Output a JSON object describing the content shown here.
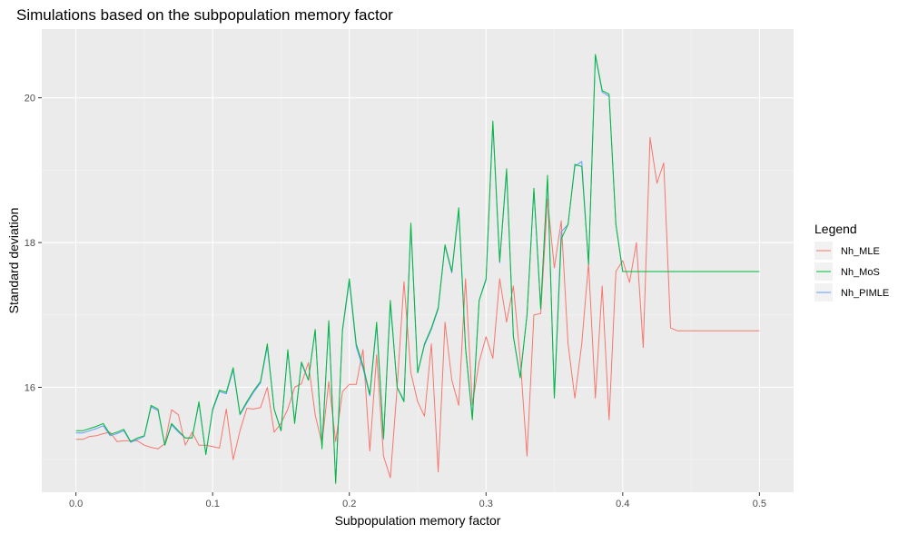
{
  "chart_data": {
    "type": "line",
    "title": "Simulations based on the subpopulation memory factor",
    "xlabel": "Subpopulation memory factor",
    "ylabel": "Standard deviation",
    "xlim": [
      -0.025,
      0.525
    ],
    "ylim": [
      14.55,
      20.95
    ],
    "x_ticks": [
      0.0,
      0.1,
      0.2,
      0.3,
      0.4,
      0.5
    ],
    "x_tick_labels": [
      "0.0",
      "0.1",
      "0.2",
      "0.3",
      "0.4",
      "0.5"
    ],
    "y_ticks": [
      16,
      18,
      20
    ],
    "y_tick_labels": [
      "16",
      "18",
      "20"
    ],
    "grid": true,
    "legend": {
      "title": "Legend",
      "position": "right"
    },
    "x": [
      0.0,
      0.005,
      0.01,
      0.015,
      0.02,
      0.025,
      0.03,
      0.035,
      0.04,
      0.045,
      0.05,
      0.055,
      0.06,
      0.065,
      0.07,
      0.075,
      0.08,
      0.085,
      0.09,
      0.095,
      0.1,
      0.105,
      0.11,
      0.115,
      0.12,
      0.125,
      0.13,
      0.135,
      0.14,
      0.145,
      0.15,
      0.155,
      0.16,
      0.165,
      0.17,
      0.175,
      0.18,
      0.185,
      0.19,
      0.195,
      0.2,
      0.205,
      0.21,
      0.215,
      0.22,
      0.225,
      0.23,
      0.235,
      0.24,
      0.245,
      0.25,
      0.255,
      0.26,
      0.265,
      0.27,
      0.275,
      0.28,
      0.285,
      0.29,
      0.295,
      0.3,
      0.305,
      0.31,
      0.315,
      0.32,
      0.325,
      0.33,
      0.335,
      0.34,
      0.345,
      0.35,
      0.355,
      0.36,
      0.365,
      0.37,
      0.375,
      0.38,
      0.385,
      0.39,
      0.395,
      0.4,
      0.405,
      0.41,
      0.415,
      0.42,
      0.425,
      0.43,
      0.435,
      0.44,
      0.445,
      0.45,
      0.455,
      0.46,
      0.465,
      0.47,
      0.475,
      0.48,
      0.485,
      0.49,
      0.495,
      0.5
    ],
    "series": [
      {
        "name": "Nh_MLE",
        "color": "#F8766D",
        "values": [
          15.28,
          15.28,
          15.32,
          15.33,
          15.36,
          15.38,
          15.25,
          15.26,
          15.26,
          15.26,
          15.2,
          15.17,
          15.15,
          15.22,
          15.69,
          15.62,
          15.2,
          15.38,
          15.2,
          15.2,
          15.18,
          15.16,
          15.7,
          15.0,
          15.4,
          15.71,
          15.7,
          15.72,
          16.0,
          15.38,
          15.5,
          15.7,
          16.0,
          16.05,
          16.34,
          15.62,
          15.22,
          16.08,
          15.25,
          15.94,
          16.04,
          16.04,
          16.52,
          15.12,
          16.45,
          15.05,
          14.75,
          16.0,
          17.46,
          16.2,
          15.8,
          15.6,
          16.6,
          14.83,
          16.9,
          16.1,
          15.75,
          17.5,
          15.76,
          16.35,
          16.7,
          16.4,
          17.5,
          16.9,
          17.4,
          16.4,
          15.05,
          17.0,
          17.02,
          18.6,
          17.65,
          18.3,
          16.6,
          15.85,
          16.6,
          17.72,
          15.85,
          17.4,
          15.55,
          17.6,
          17.75,
          17.45,
          18.0,
          16.55,
          19.45,
          18.82,
          19.1,
          16.82,
          16.78,
          16.78,
          16.78,
          16.78,
          16.78,
          16.78,
          16.78,
          16.78,
          16.78,
          16.78,
          16.78,
          16.78,
          16.78
        ]
      },
      {
        "name": "Nh_MoS",
        "color": "#00BA38",
        "values": [
          15.4,
          15.4,
          15.43,
          15.46,
          15.5,
          15.35,
          15.38,
          15.42,
          15.25,
          15.3,
          15.33,
          15.75,
          15.7,
          15.2,
          15.5,
          15.4,
          15.3,
          15.3,
          15.8,
          15.07,
          15.7,
          15.96,
          15.93,
          16.27,
          15.63,
          15.8,
          15.95,
          16.08,
          16.6,
          15.7,
          15.4,
          16.52,
          15.5,
          16.35,
          16.1,
          16.8,
          15.15,
          16.92,
          14.67,
          16.8,
          17.5,
          16.6,
          16.3,
          15.9,
          16.9,
          15.3,
          17.2,
          16.0,
          15.8,
          18.27,
          16.2,
          16.6,
          16.82,
          17.1,
          17.97,
          17.6,
          18.48,
          16.55,
          15.55,
          17.2,
          17.5,
          19.68,
          17.74,
          19.02,
          16.7,
          16.13,
          17.0,
          18.75,
          17.08,
          18.93,
          15.85,
          18.05,
          18.25,
          19.08,
          19.05,
          17.7,
          20.6,
          20.1,
          20.05,
          18.25,
          17.6,
          17.6,
          17.6,
          17.6,
          17.6,
          17.6,
          17.6,
          17.6,
          17.6,
          17.6,
          17.6,
          17.6,
          17.6,
          17.6,
          17.6,
          17.6,
          17.6,
          17.6,
          17.6,
          17.6,
          17.6
        ]
      },
      {
        "name": "Nh_PIMLE",
        "color": "#619CFF",
        "values": [
          15.37,
          15.37,
          15.4,
          15.43,
          15.47,
          15.33,
          15.36,
          15.4,
          15.24,
          15.28,
          15.32,
          15.73,
          15.68,
          15.2,
          15.48,
          15.38,
          15.3,
          15.3,
          15.78,
          15.08,
          15.68,
          15.94,
          15.91,
          16.24,
          15.62,
          15.78,
          15.93,
          16.06,
          16.56,
          15.7,
          15.4,
          16.5,
          15.52,
          16.33,
          16.1,
          16.78,
          15.18,
          16.9,
          14.7,
          16.78,
          17.46,
          16.56,
          16.26,
          15.88,
          16.86,
          15.28,
          17.16,
          16.0,
          15.82,
          18.22,
          16.2,
          16.58,
          16.8,
          17.08,
          17.95,
          17.58,
          18.44,
          16.54,
          15.6,
          17.2,
          17.48,
          19.64,
          17.72,
          18.98,
          16.7,
          16.14,
          17.0,
          18.72,
          17.1,
          18.88,
          15.88,
          18.15,
          18.25,
          19.05,
          19.12,
          17.7,
          20.58,
          20.08,
          20.02,
          18.25,
          17.6,
          17.6,
          17.6,
          17.6,
          17.6,
          17.6,
          17.6,
          17.6,
          17.6,
          17.6,
          17.6,
          17.6,
          17.6,
          17.6,
          17.6,
          17.6,
          17.6,
          17.6,
          17.6,
          17.6,
          17.6
        ]
      }
    ]
  }
}
